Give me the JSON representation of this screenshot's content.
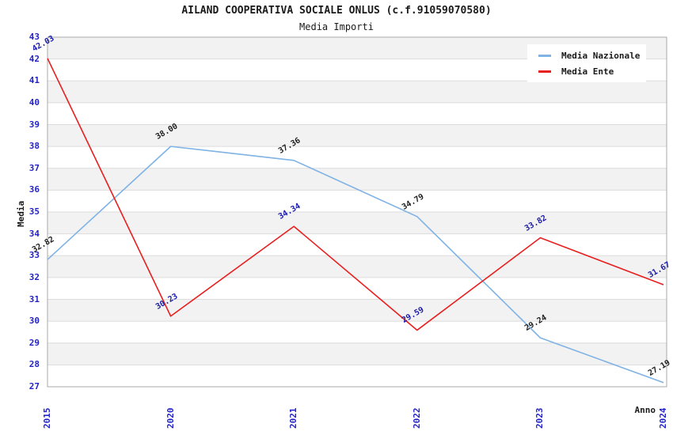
{
  "chart": {
    "title": "AILAND COOPERATIVA SOCIALE ONLUS (c.f.91059070580)",
    "subtitle": "Media Importi",
    "ylabel": "Media",
    "xlabel": "Anno"
  },
  "chart_data": {
    "type": "line",
    "categories": [
      "2015",
      "2020",
      "2021",
      "2022",
      "2023",
      "2024"
    ],
    "series": [
      {
        "name": "Media Nazionale",
        "color": "#7fb2e5",
        "label_color": "#1f1f1f",
        "values": [
          32.82,
          38.0,
          37.36,
          34.79,
          29.24,
          27.19
        ]
      },
      {
        "name": "Media Ente",
        "color": "#e81f1f",
        "label_color": "#1c1ca8",
        "values": [
          42.03,
          30.23,
          34.34,
          29.59,
          33.82,
          31.67
        ]
      }
    ],
    "title": "Media Importi",
    "xlabel": "Anno",
    "ylabel": "Media",
    "ylim": [
      27,
      43
    ],
    "ytick_step": 1,
    "grid": true,
    "band_colors": [
      "#f2f2f2",
      "#ffffff"
    ],
    "gridline_color": "#dcdcdc",
    "frame_color": "#a9a9a9",
    "tick_color": "#2323c8",
    "legend_position": "top-right"
  }
}
